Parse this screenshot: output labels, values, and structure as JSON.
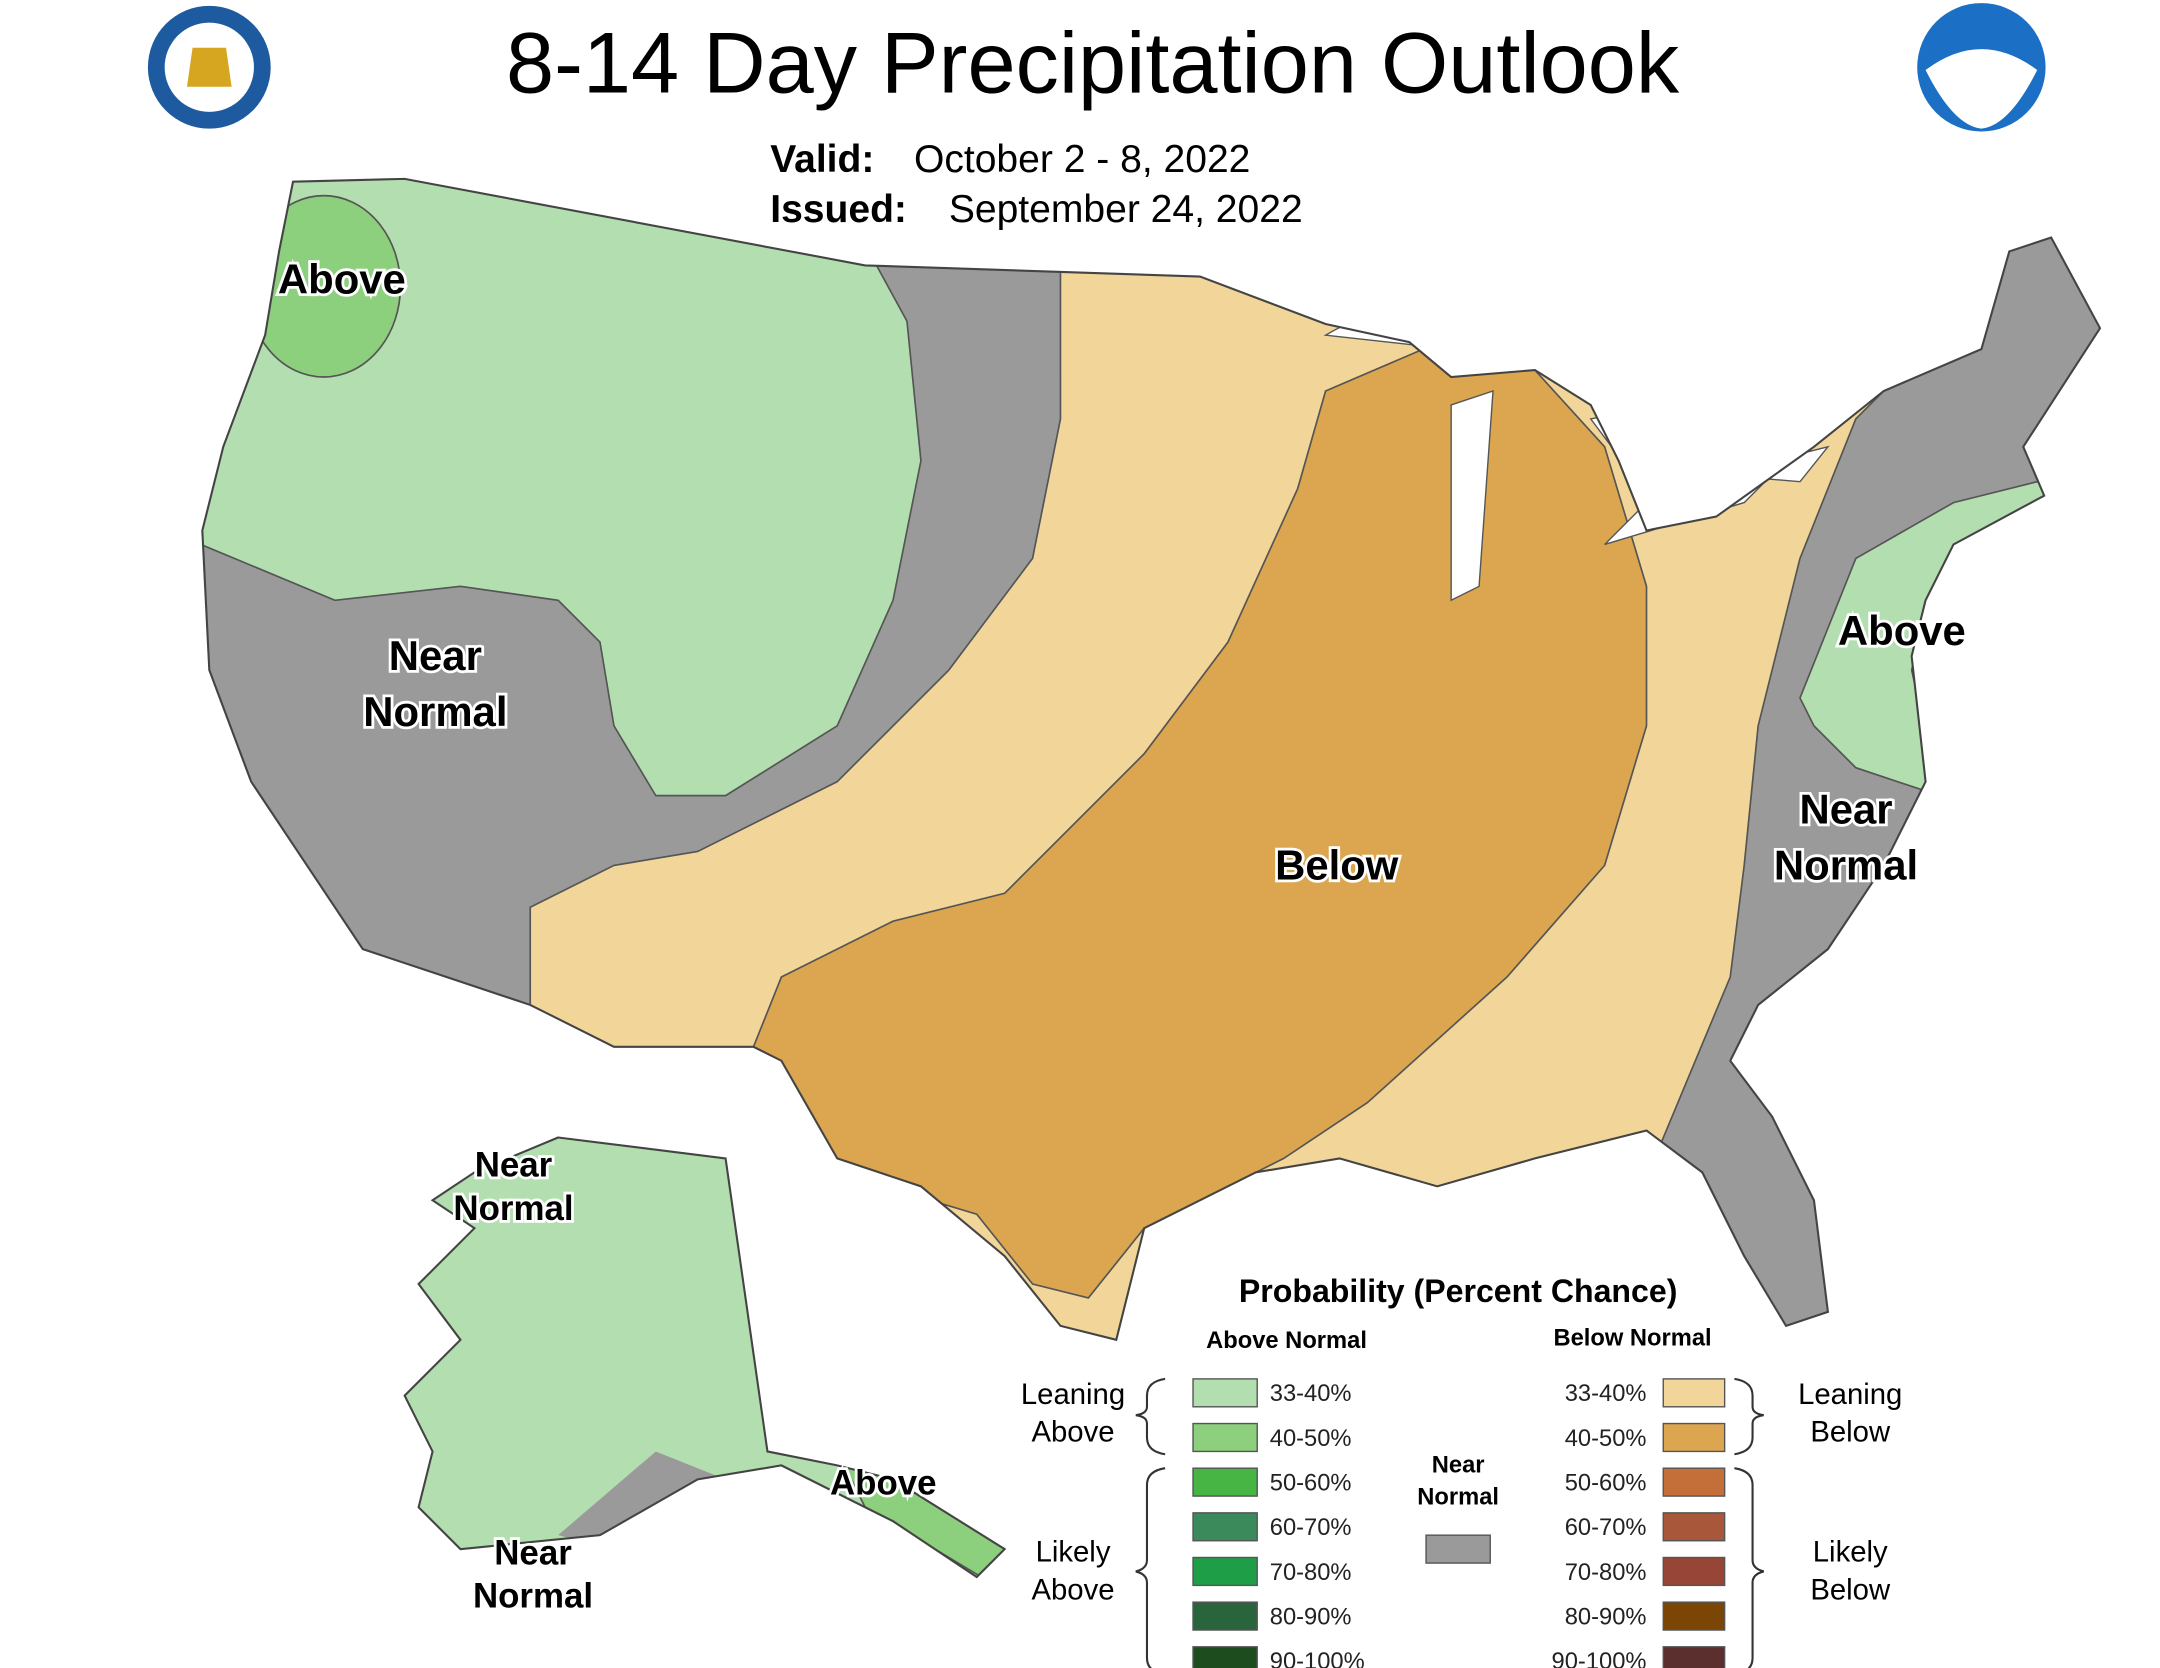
{
  "header": {
    "title": "8-14 Day Precipitation Outlook",
    "valid_label": "Valid:",
    "valid_value": "October 2 - 8, 2022",
    "issued_label": "Issued:",
    "issued_value": "September 24, 2022"
  },
  "map_labels": [
    {
      "lines": [
        "Above"
      ]
    },
    {
      "lines": [
        "Near",
        "Normal"
      ]
    },
    {
      "lines": [
        "Below"
      ]
    },
    {
      "lines": [
        "Above"
      ]
    },
    {
      "lines": [
        "Near",
        "Normal"
      ]
    },
    {
      "lines": [
        "Near",
        "Normal"
      ]
    },
    {
      "lines": [
        "Above"
      ]
    },
    {
      "lines": [
        "Near",
        "Normal"
      ]
    }
  ],
  "legend": {
    "title": "Probability (Percent Chance)",
    "above_heading": "Above Normal",
    "below_heading": "Below Normal",
    "leaning_above": [
      "Leaning",
      "Above"
    ],
    "likely_above": [
      "Likely",
      "Above"
    ],
    "near_normal": [
      "Near",
      "Normal"
    ],
    "near_normal_color": "#9a9a9a",
    "leaning_below": [
      "Leaning",
      "Below"
    ],
    "likely_below": [
      "Likely",
      "Below"
    ],
    "above_items": [
      {
        "label": "33-40%",
        "color": "#b3dfb0"
      },
      {
        "label": "40-50%",
        "color": "#8ccf7c"
      },
      {
        "label": "50-60%",
        "color": "#46b544"
      },
      {
        "label": "60-70%",
        "color": "#3a8a5c"
      },
      {
        "label": "70-80%",
        "color": "#1f9e48"
      },
      {
        "label": "80-90%",
        "color": "#2a643c"
      },
      {
        "label": "90-100%",
        "color": "#1d4d1f"
      }
    ],
    "below_items": [
      {
        "label": "33-40%",
        "color": "#f2d699"
      },
      {
        "label": "40-50%",
        "color": "#dba64f"
      },
      {
        "label": "50-60%",
        "color": "#c46e3a"
      },
      {
        "label": "60-70%",
        "color": "#a8573a"
      },
      {
        "label": "70-80%",
        "color": "#964536"
      },
      {
        "label": "80-90%",
        "color": "#7a4505"
      },
      {
        "label": "90-100%",
        "color": "#5a2f2e"
      }
    ]
  }
}
